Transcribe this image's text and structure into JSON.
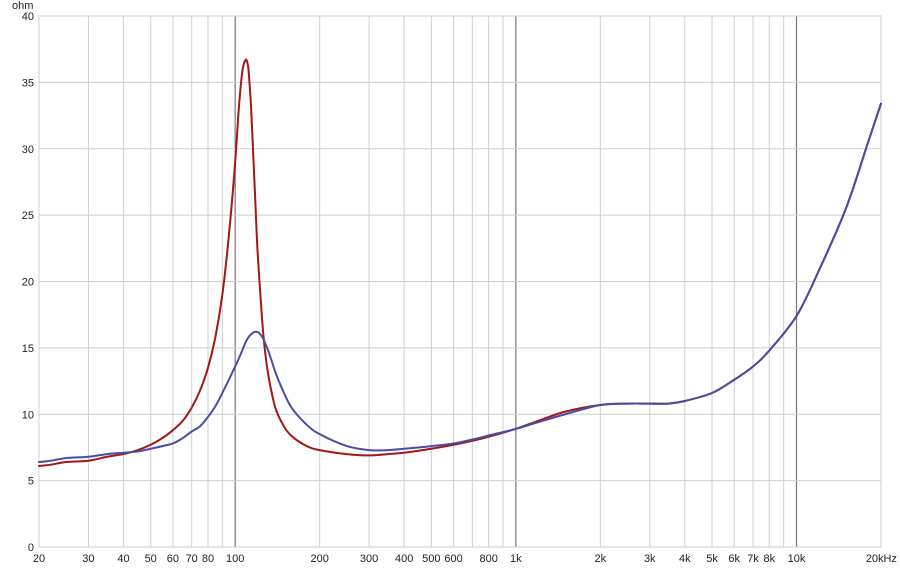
{
  "chart_data": {
    "type": "line",
    "title": "",
    "xlabel": "",
    "ylabel": "ohm",
    "x_scale": "log",
    "xlim": [
      20,
      20000
    ],
    "ylim": [
      0,
      40
    ],
    "grid": true,
    "legend": "none",
    "x_ticks": [
      {
        "value": 20,
        "label": "20"
      },
      {
        "value": 30,
        "label": "30"
      },
      {
        "value": 40,
        "label": "40"
      },
      {
        "value": 50,
        "label": "50"
      },
      {
        "value": 60,
        "label": "60"
      },
      {
        "value": 70,
        "label": "70"
      },
      {
        "value": 80,
        "label": "80"
      },
      {
        "value": 100,
        "label": "100"
      },
      {
        "value": 200,
        "label": "200"
      },
      {
        "value": 300,
        "label": "300"
      },
      {
        "value": 400,
        "label": "400"
      },
      {
        "value": 500,
        "label": "500"
      },
      {
        "value": 600,
        "label": "600"
      },
      {
        "value": 800,
        "label": "800"
      },
      {
        "value": 1000,
        "label": "1k"
      },
      {
        "value": 2000,
        "label": "2k"
      },
      {
        "value": 3000,
        "label": "3k"
      },
      {
        "value": 4000,
        "label": "4k"
      },
      {
        "value": 5000,
        "label": "5k"
      },
      {
        "value": 6000,
        "label": "6k"
      },
      {
        "value": 7000,
        "label": "7k"
      },
      {
        "value": 8000,
        "label": "8k"
      },
      {
        "value": 10000,
        "label": "10k"
      },
      {
        "value": 20000,
        "label": "20kHz"
      }
    ],
    "y_ticks": [
      {
        "value": 0,
        "label": "0"
      },
      {
        "value": 5,
        "label": "5"
      },
      {
        "value": 10,
        "label": "10"
      },
      {
        "value": 15,
        "label": "15"
      },
      {
        "value": 20,
        "label": "20"
      },
      {
        "value": 25,
        "label": "25"
      },
      {
        "value": 30,
        "label": "30"
      },
      {
        "value": 35,
        "label": "35"
      },
      {
        "value": 40,
        "label": "40"
      }
    ],
    "series": [
      {
        "color": "#a01818",
        "x": [
          20,
          22,
          25,
          30,
          35,
          40,
          45,
          50,
          55,
          60,
          65,
          70,
          75,
          80,
          85,
          90,
          95,
          100,
          103,
          106,
          109,
          111,
          112,
          114,
          116,
          118,
          120,
          123,
          126,
          130,
          135,
          140,
          150,
          160,
          180,
          200,
          250,
          300,
          350,
          400,
          500,
          600,
          700,
          800,
          1000,
          1200,
          1500,
          2000,
          2500,
          3000,
          3500,
          4000,
          5000,
          6000,
          7000,
          8000,
          10000,
          12000,
          15000,
          18000,
          20000
        ],
        "y": [
          6.1,
          6.2,
          6.4,
          6.5,
          6.8,
          7.0,
          7.3,
          7.7,
          8.2,
          8.8,
          9.5,
          10.5,
          11.8,
          13.5,
          15.8,
          19.0,
          23.5,
          29.0,
          33.0,
          35.8,
          36.7,
          36.3,
          35.5,
          33.0,
          29.5,
          26.0,
          22.5,
          19.0,
          16.0,
          13.5,
          11.6,
          10.3,
          9.0,
          8.3,
          7.6,
          7.3,
          7.0,
          6.9,
          7.0,
          7.1,
          7.4,
          7.7,
          8.0,
          8.3,
          8.9,
          9.5,
          10.2,
          10.7,
          10.8,
          10.8,
          10.8,
          11.0,
          11.6,
          12.6,
          13.6,
          14.8,
          17.4,
          20.8,
          25.5,
          30.5,
          33.4
        ]
      },
      {
        "color": "#4a4ca8",
        "x": [
          20,
          22,
          25,
          30,
          35,
          40,
          45,
          50,
          55,
          60,
          65,
          70,
          75,
          80,
          85,
          90,
          100,
          105,
          110,
          115,
          120,
          125,
          130,
          135,
          140,
          150,
          160,
          180,
          200,
          250,
          300,
          350,
          400,
          500,
          600,
          700,
          800,
          1000,
          1200,
          1500,
          2000,
          2500,
          3000,
          3500,
          4000,
          5000,
          6000,
          7000,
          8000,
          10000,
          12000,
          15000,
          18000,
          20000
        ],
        "y": [
          6.4,
          6.5,
          6.7,
          6.8,
          7.0,
          7.1,
          7.2,
          7.4,
          7.6,
          7.8,
          8.2,
          8.7,
          9.1,
          9.8,
          10.6,
          11.6,
          13.6,
          14.6,
          15.6,
          16.1,
          16.2,
          15.8,
          15.0,
          14.0,
          13.0,
          11.5,
          10.4,
          9.2,
          8.5,
          7.6,
          7.3,
          7.3,
          7.4,
          7.6,
          7.8,
          8.1,
          8.4,
          8.9,
          9.4,
          10.0,
          10.7,
          10.8,
          10.8,
          10.8,
          11.0,
          11.6,
          12.6,
          13.6,
          14.8,
          17.4,
          20.8,
          25.5,
          30.5,
          33.4
        ]
      }
    ]
  }
}
